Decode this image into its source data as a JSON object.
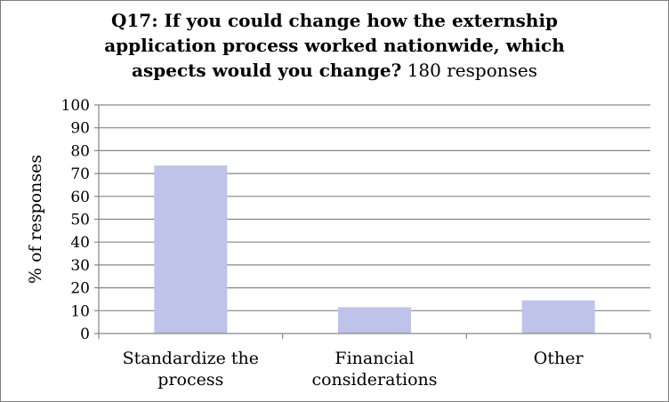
{
  "chart_data": {
    "type": "bar",
    "title_bold_lines": [
      "Q17: If you could change how the externship",
      "application process worked nationwide, which",
      "aspects would you change?"
    ],
    "title_suffix": "180 responses",
    "categories": [
      [
        "Standardize the",
        "process"
      ],
      [
        "Financial",
        "considerations"
      ],
      [
        "Other"
      ]
    ],
    "values": [
      73.5,
      11.5,
      14.5
    ],
    "ylabel": "% of responses",
    "xlabel": "",
    "ylim": [
      0,
      100
    ],
    "yticks": [
      0,
      10,
      20,
      30,
      40,
      50,
      60,
      70,
      80,
      90,
      100
    ],
    "grid": true,
    "bar_color": "#bfc3ea",
    "grid_color": "#868686"
  }
}
